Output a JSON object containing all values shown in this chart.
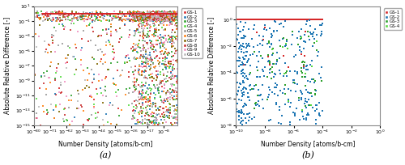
{
  "plot_a": {
    "title": "(a)",
    "xlabel": "Number Density [atoms/b-cm]",
    "ylabel": "Absolute Relative Difference [-]",
    "xlim_exp": [
      -80,
      0
    ],
    "ylim_exp": [
      -15,
      1
    ],
    "legend_labels": [
      "GS-1",
      "GS-2",
      "GS-3",
      "GS-4",
      "GS-5",
      "GS-6",
      "GS-7",
      "GS-8",
      "GS-9",
      "GS-10"
    ],
    "colors": [
      "#d62728",
      "#1f77b4",
      "#2ca02c",
      "#56db40",
      "#999999",
      "#ff7f0e",
      "#7f6600",
      "#c83030",
      "#f090c0",
      "#bbbbbb"
    ],
    "n_groups": 10,
    "seed": 42
  },
  "plot_b": {
    "title": "(b)",
    "xlabel": "Number Density [atoms/b-cm]",
    "ylabel": "Absolute Relative Difference [-]",
    "xlim_exp": [
      -10,
      0
    ],
    "ylim_exp": [
      -8,
      1
    ],
    "legend_labels": [
      "GS-1",
      "GS-2",
      "GS-3",
      "GS-4"
    ],
    "colors": [
      "#d62728",
      "#1f77b4",
      "#2ca02c",
      "#56db40"
    ],
    "n_groups": 4,
    "seed": 77
  },
  "figsize": [
    5.0,
    2.04
  ],
  "dpi": 100
}
